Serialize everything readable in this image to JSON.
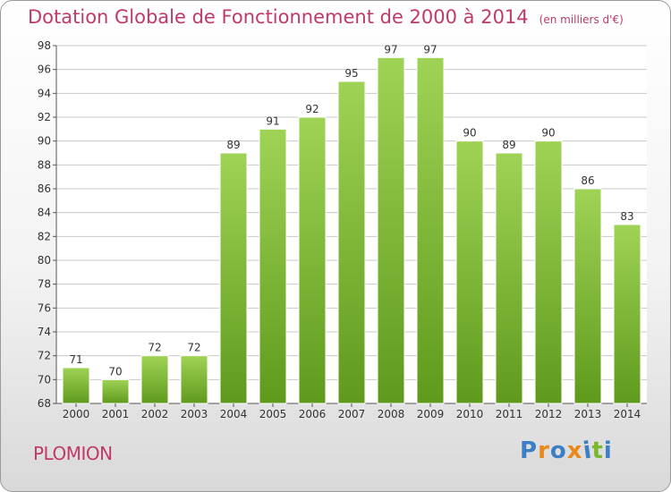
{
  "header": {
    "title": "Dotation Globale de Fonctionnement de 2000 à 2014",
    "subtitle": "(en milliers d'€)"
  },
  "footer": {
    "commune": "PLOMION",
    "logo_text": "Proxiti"
  },
  "colors": {
    "title": "#c0396b",
    "bar_top": "#9fd356",
    "bar_bottom": "#5f9a1c",
    "grid": "#c8c8c8",
    "logo_letters": [
      "#3d7fc7",
      "#e8891c",
      "#3d7fc7",
      "#e8891c",
      "#3d7fc7",
      "#7ab82e",
      "#3d7fc7"
    ]
  },
  "chart_data": {
    "type": "bar",
    "title": "Dotation Globale de Fonctionnement de 2000 à 2014",
    "subtitle": "(en milliers d'€)",
    "xlabel": "",
    "ylabel": "",
    "categories": [
      "2000",
      "2001",
      "2002",
      "2003",
      "2004",
      "2005",
      "2006",
      "2007",
      "2008",
      "2009",
      "2010",
      "2011",
      "2012",
      "2013",
      "2014"
    ],
    "values": [
      71,
      70,
      72,
      72,
      89,
      91,
      92,
      95,
      97,
      97,
      90,
      89,
      90,
      86,
      83
    ],
    "ylim": [
      68,
      98
    ],
    "yticks": [
      68,
      70,
      72,
      74,
      76,
      78,
      80,
      82,
      84,
      86,
      88,
      90,
      92,
      94,
      96,
      98
    ],
    "grid": true,
    "data_labels": true
  }
}
